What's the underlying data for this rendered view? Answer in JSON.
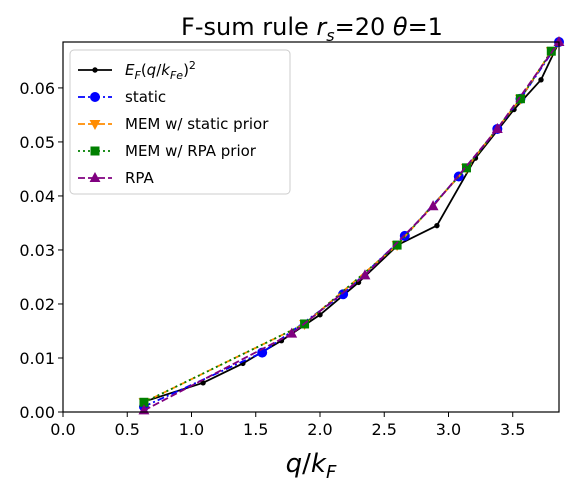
{
  "chart_data": {
    "type": "line",
    "title": {
      "pre": "F-sum rule ",
      "r": "r",
      "r_sub": "s",
      "mid": "=20 ",
      "theta": "θ",
      "post": "=1"
    },
    "xlabel": {
      "q": "q",
      "slash": "/",
      "k": "k",
      "sub": "F"
    },
    "ylabel": "",
    "xlim": [
      0.0,
      3.86
    ],
    "ylim": [
      0.0,
      0.0685
    ],
    "xticks": [
      "0.0",
      "0.5",
      "1.0",
      "1.5",
      "2.0",
      "2.5",
      "3.0",
      "3.5"
    ],
    "yticks": [
      "0.00",
      "0.01",
      "0.02",
      "0.03",
      "0.04",
      "0.05",
      "0.06"
    ],
    "grid": false,
    "legend_position": "top-left",
    "series": [
      {
        "name": "E_F(q/k_Fe)^2",
        "legend": {
          "E": "E",
          "E_sub": "F",
          "open": "(",
          "q": "q",
          "slash": "/",
          "k": "k",
          "k_sub": "Fe",
          "close": ")",
          "sup": "2"
        },
        "color": "#000000",
        "marker": "dot",
        "dash": "solid",
        "x": [
          0.63,
          1.09,
          1.4,
          1.7,
          2.0,
          2.3,
          2.61,
          2.91,
          3.21,
          3.51,
          3.72,
          3.86
        ],
        "y": [
          0.0019,
          0.0054,
          0.009,
          0.0132,
          0.018,
          0.024,
          0.031,
          0.0345,
          0.047,
          0.056,
          0.0615,
          0.0685
        ]
      },
      {
        "name": "static",
        "color": "#0000ff",
        "marker": "circle",
        "dash": "dashdot",
        "x": [
          0.63,
          1.55,
          2.18,
          2.66,
          3.08,
          3.38,
          3.56,
          3.86
        ],
        "y": [
          0.001,
          0.011,
          0.0218,
          0.0326,
          0.0436,
          0.0524,
          0.058,
          0.0685
        ]
      },
      {
        "name": "MEM w/ static prior",
        "color": "#ff8c00",
        "marker": "triangle-down",
        "dash": "dashed",
        "x": [
          0.63,
          1.88,
          2.6,
          3.14,
          3.56,
          3.8
        ],
        "y": [
          0.0018,
          0.0163,
          0.0309,
          0.0452,
          0.058,
          0.0668
        ]
      },
      {
        "name": "MEM w/ RPA prior",
        "color": "#008000",
        "marker": "square",
        "dash": "dotted",
        "x": [
          0.63,
          1.88,
          2.6,
          3.14,
          3.56,
          3.8
        ],
        "y": [
          0.0018,
          0.0163,
          0.0309,
          0.0452,
          0.058,
          0.0668
        ]
      },
      {
        "name": "RPA",
        "color": "#800080",
        "marker": "triangle-up",
        "dash": "dashed",
        "x": [
          0.63,
          1.78,
          2.35,
          2.88,
          3.38,
          3.86
        ],
        "y": [
          0.0003,
          0.0145,
          0.0253,
          0.0381,
          0.0524,
          0.0685
        ]
      }
    ]
  }
}
